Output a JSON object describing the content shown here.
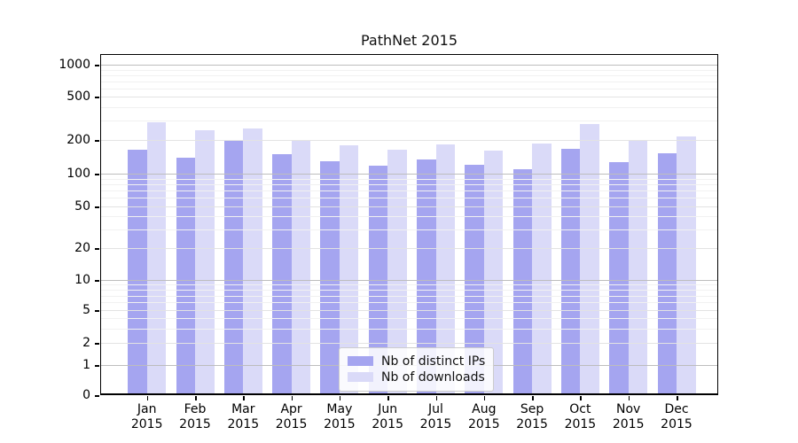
{
  "chart_data": {
    "type": "bar",
    "title": "PathNet 2015",
    "scale": "symlog",
    "grid": "both",
    "legend_position": "lower center",
    "categories": [
      "Jan",
      "Feb",
      "Mar",
      "Apr",
      "May",
      "Jun",
      "Jul",
      "Aug",
      "Sep",
      "Oct",
      "Nov",
      "Dec"
    ],
    "category_year": "2015",
    "series": [
      {
        "name": "Nb of distinct IPs",
        "color": "#a5a5f0",
        "values": [
          165,
          140,
          196,
          150,
          130,
          117,
          135,
          121,
          110,
          168,
          128,
          152
        ]
      },
      {
        "name": "Nb of downloads",
        "color": "#dadaf8",
        "values": [
          290,
          245,
          255,
          200,
          180,
          165,
          182,
          161,
          187,
          280,
          198,
          215
        ]
      }
    ],
    "y_ticks": [
      0,
      1,
      2,
      5,
      10,
      20,
      50,
      100,
      200,
      500,
      1000
    ],
    "ylim": [
      0,
      1500
    ],
    "xlabel": "",
    "ylabel": ""
  },
  "colors": {
    "background": "#ffffff",
    "grid_major": "#bdbdbd",
    "grid_mid": "#e3e3e3",
    "grid_minor": "#f1f1f1",
    "axis": "#000000",
    "text": "#111111"
  }
}
